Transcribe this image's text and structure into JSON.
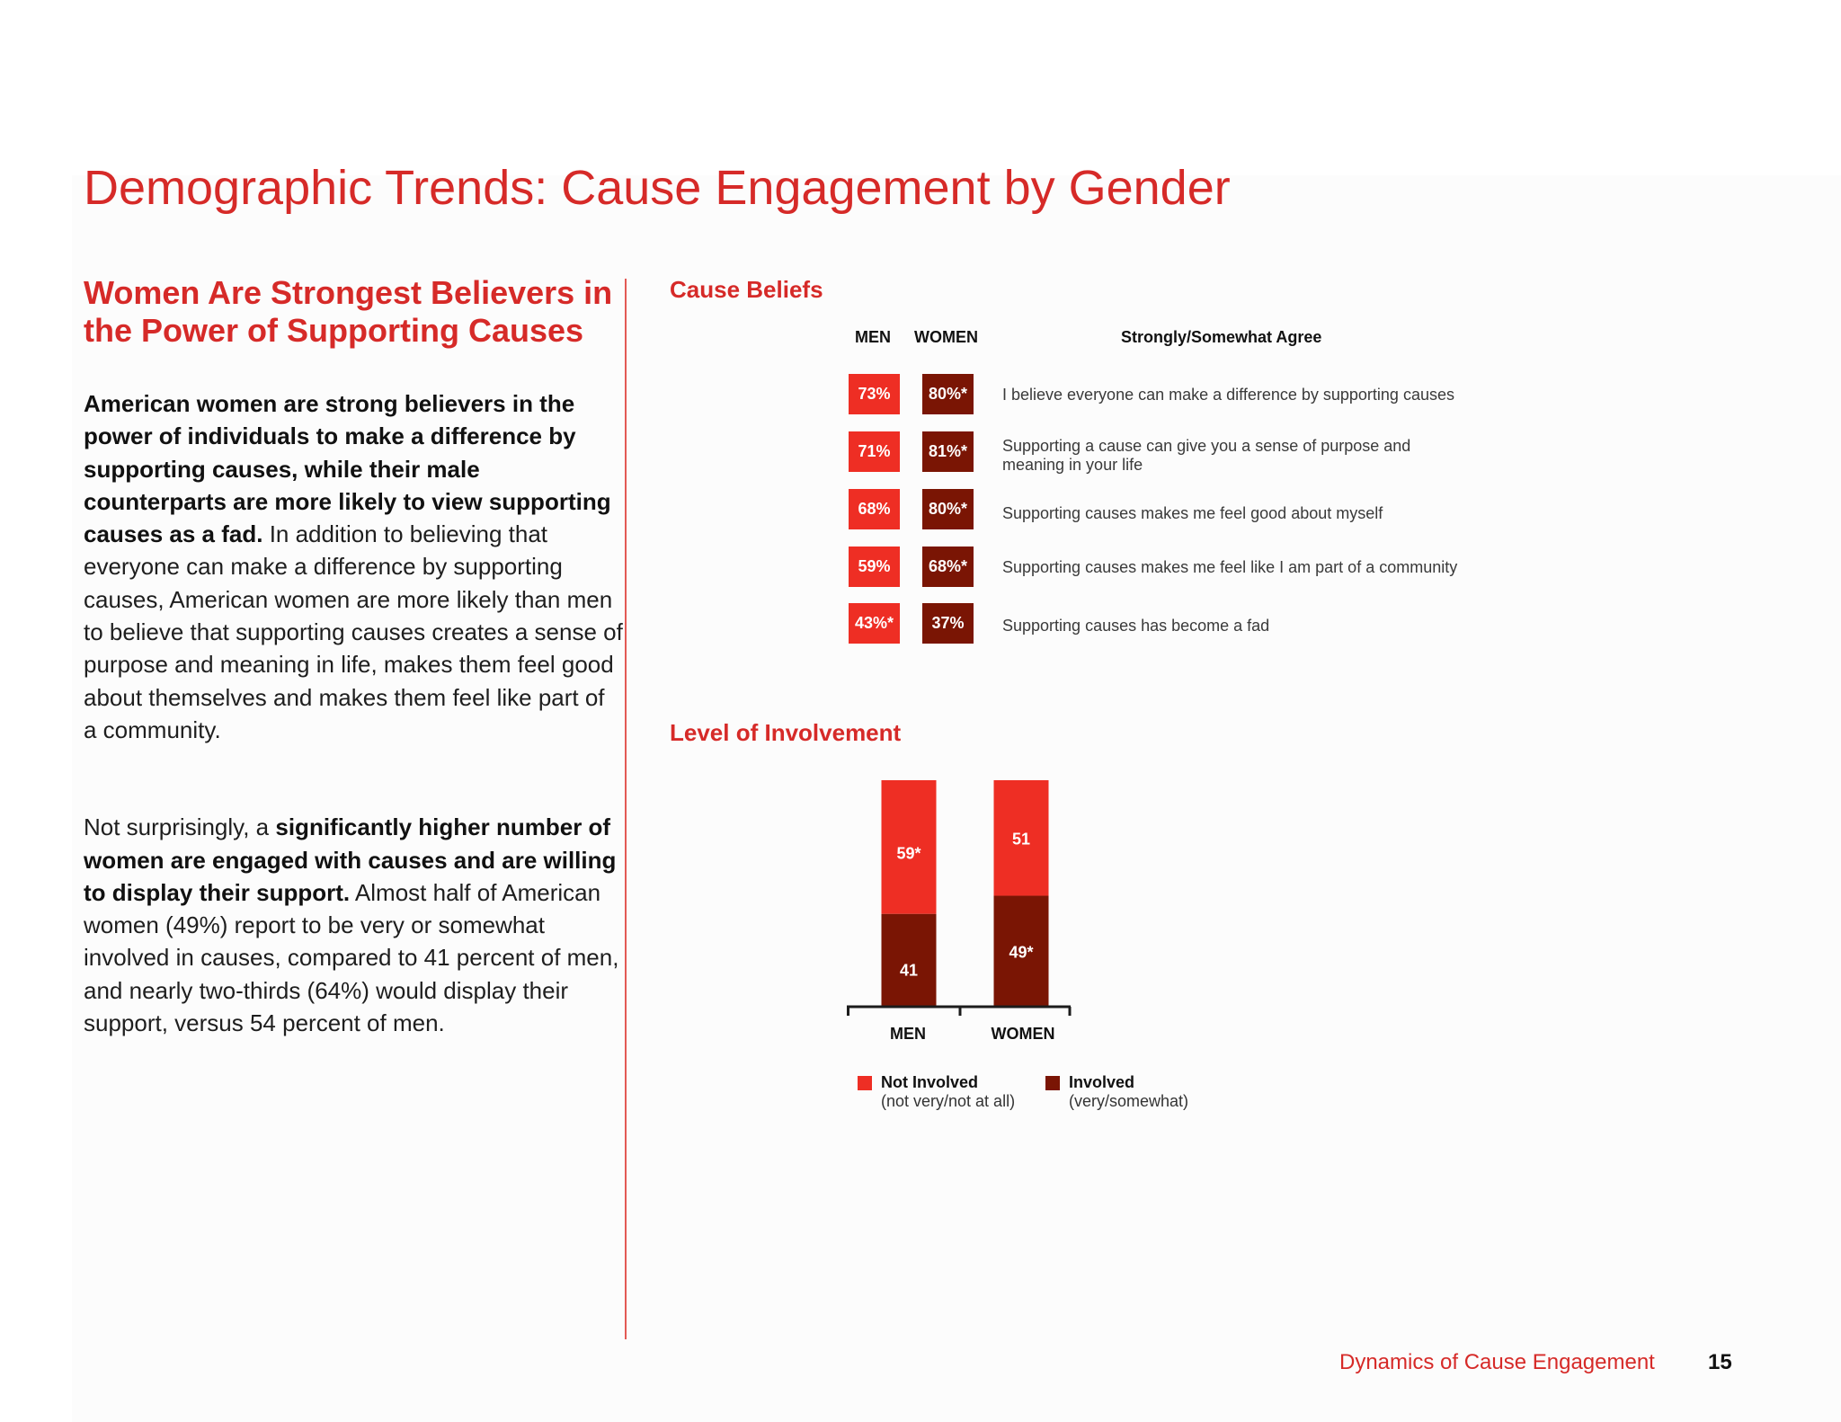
{
  "title": "Demographic Trends: Cause Engagement by Gender",
  "left": {
    "heading": "Women Are Strongest Believers in the Power of Supporting Causes",
    "para1_bold": "American women are strong believers in the power of individuals to make a difference by supporting causes, while their male counterparts are more likely to view supporting causes as a fad.",
    "para1_text": " In addition to believing that everyone can make a difference by supporting causes, American women are more likely than men to believe that supporting causes creates a sense of purpose and meaning in life, makes them feel good about themselves and makes them feel like part of a community.",
    "para2_lead": "Not surprisingly, a ",
    "para2_bold": "significantly higher number of women are engaged with causes and are willing to display their support.",
    "para2_text": " Almost half of American women (49%) report to be very or somewhat involved in causes, compared to 41 percent of men, and nearly two-thirds (64%) would display their support, versus 54 percent of men."
  },
  "beliefs": {
    "heading": "Cause Beliefs",
    "col_men": "MEN",
    "col_women": "WOMEN",
    "col_agree": "Strongly/Somewhat Agree",
    "rows": [
      {
        "men": "73%",
        "women": "80%*",
        "statement": "I believe everyone can make a difference by supporting causes"
      },
      {
        "men": "71%",
        "women": "81%*",
        "statement": "Supporting a cause can give you a sense of purpose and meaning in your life"
      },
      {
        "men": "68%",
        "women": "80%*",
        "statement": "Supporting causes makes me feel good about myself"
      },
      {
        "men": "59%",
        "women": "68%*",
        "statement": "Supporting causes makes me feel like I am part of a community"
      },
      {
        "men": "43%*",
        "women": "37%",
        "statement": "Supporting causes has become a fad"
      }
    ]
  },
  "involvement": {
    "heading": "Level of Involvement",
    "legend": {
      "not_involved": "Not Involved",
      "not_involved_sub": "(not very/not at all)",
      "involved": "Involved",
      "involved_sub": "(very/somewhat)"
    }
  },
  "chart_data": {
    "type": "bar",
    "stacked": true,
    "title": "Level of Involvement",
    "categories": [
      "MEN",
      "WOMEN"
    ],
    "series": [
      {
        "name": "Involved",
        "values": [
          41,
          49
        ],
        "labels": [
          "41",
          "49*"
        ],
        "color": "#7a1504"
      },
      {
        "name": "Not Involved",
        "values": [
          59,
          51
        ],
        "labels": [
          "59*",
          "51"
        ],
        "color": "#ee2e24"
      }
    ],
    "ylim": [
      0,
      100
    ]
  },
  "colors": {
    "accent": "#d62a28",
    "bright_red": "#ee2e24",
    "dark_red": "#7a1504"
  },
  "footer": {
    "text": "Dynamics of Cause Engagement",
    "page": "15"
  }
}
